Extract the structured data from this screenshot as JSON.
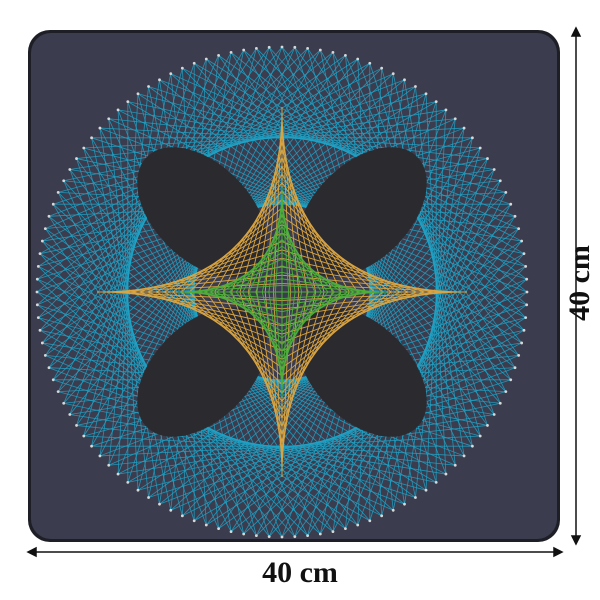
{
  "product": {
    "width_label": "40 cm",
    "height_label": "40 cm"
  },
  "colors": {
    "board": "#3b3d4f",
    "frame": "#1e1f26",
    "blue_string": "#1fa3c7",
    "gold_string": "#d9a441",
    "green_string": "#4caf3a",
    "hole": "#2b2a2f",
    "pin": "#d8d8d8"
  }
}
